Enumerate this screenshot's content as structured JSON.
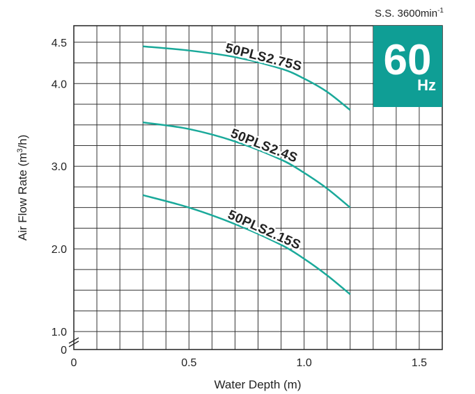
{
  "chart_data": {
    "type": "line",
    "speed_label": "S.S. 3600min",
    "speed_unit_exp": "-1",
    "badge": {
      "value": "60",
      "unit": "Hz",
      "color": "#0f9e95"
    },
    "xlabel": "Water Depth (m)",
    "ylabel_main": "Air Flow Rate (m",
    "ylabel_sup": "3",
    "ylabel_end": "/h)",
    "xlim": [
      0,
      1.6
    ],
    "ylim_broken": [
      0.9,
      4.7
    ],
    "x_ticks": [
      {
        "value": 0,
        "label": "0"
      },
      {
        "value": 0.5,
        "label": "0.5"
      },
      {
        "value": 1.0,
        "label": "1.0"
      },
      {
        "value": 1.5,
        "label": "1.5"
      }
    ],
    "y_ticks": [
      {
        "value": 4.5,
        "label": "4.5"
      },
      {
        "value": 4.0,
        "label": "4.0"
      },
      {
        "value": 3.0,
        "label": "3.0"
      },
      {
        "value": 2.0,
        "label": "2.0"
      },
      {
        "value": 1.0,
        "label": "1.0"
      }
    ],
    "y_zero_label": "0",
    "grid": true,
    "line_color": "#1aa99a",
    "series": [
      {
        "name": "50PLS2.75S",
        "x": [
          0.3,
          0.5,
          0.7,
          0.9,
          1.0,
          1.1,
          1.2
        ],
        "y": [
          4.45,
          4.4,
          4.32,
          4.18,
          4.06,
          3.9,
          3.68
        ]
      },
      {
        "name": "50PLS2.4S",
        "x": [
          0.3,
          0.5,
          0.7,
          0.9,
          1.0,
          1.1,
          1.2
        ],
        "y": [
          3.53,
          3.45,
          3.3,
          3.08,
          2.92,
          2.73,
          2.5
        ]
      },
      {
        "name": "50PLS2.15S",
        "x": [
          0.3,
          0.5,
          0.7,
          0.9,
          1.0,
          1.1,
          1.2
        ],
        "y": [
          2.65,
          2.5,
          2.3,
          2.05,
          1.88,
          1.68,
          1.45
        ]
      }
    ]
  }
}
